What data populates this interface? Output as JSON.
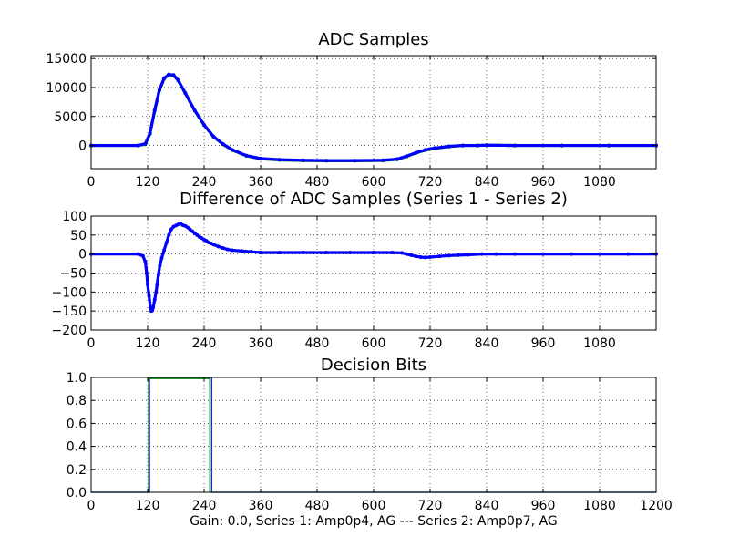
{
  "chart_data": [
    {
      "type": "line",
      "title": "ADC Samples",
      "xlabel": "",
      "ylabel": "",
      "xlim": [
        0,
        1200
      ],
      "ylim": [
        -4000,
        15500
      ],
      "x_ticks": [
        0,
        120,
        240,
        360,
        480,
        600,
        720,
        840,
        960,
        1080
      ],
      "x_tick_labels": [
        "0",
        "120",
        "240",
        "360",
        "480",
        "600",
        "720",
        "840",
        "960",
        "1080"
      ],
      "y_ticks": [
        0,
        5000,
        10000,
        15000
      ],
      "y_tick_labels": [
        "0",
        "5000",
        "10000",
        "15000"
      ],
      "grid": true,
      "series": [
        {
          "color": "#008000",
          "marker": "dot",
          "x": [
            0,
            100,
            115,
            125,
            135,
            145,
            155,
            165,
            175,
            185,
            200,
            220,
            240,
            260,
            280,
            300,
            330,
            360,
            400,
            450,
            500,
            560,
            620,
            650,
            670,
            690,
            710,
            730,
            760,
            790,
            820,
            840,
            900,
            1000,
            1100,
            1200
          ],
          "values": [
            0,
            0,
            200,
            2000,
            6000,
            9500,
            11500,
            12200,
            12100,
            11200,
            9000,
            6000,
            3500,
            1500,
            200,
            -800,
            -1800,
            -2300,
            -2500,
            -2600,
            -2650,
            -2650,
            -2600,
            -2400,
            -1900,
            -1300,
            -800,
            -500,
            -200,
            0,
            0,
            50,
            0,
            0,
            0,
            0
          ]
        },
        {
          "color": "#0000ff",
          "marker": "dot",
          "x": [
            0,
            100,
            115,
            125,
            135,
            145,
            155,
            165,
            175,
            185,
            200,
            220,
            240,
            260,
            280,
            300,
            330,
            360,
            400,
            450,
            500,
            560,
            620,
            650,
            670,
            690,
            710,
            730,
            760,
            790,
            820,
            840,
            900,
            1000,
            1100,
            1200
          ],
          "values": [
            0,
            0,
            300,
            2100,
            6100,
            9600,
            11600,
            12250,
            12150,
            11250,
            9050,
            6050,
            3550,
            1550,
            250,
            -750,
            -1750,
            -2250,
            -2450,
            -2550,
            -2600,
            -2600,
            -2550,
            -2350,
            -1850,
            -1250,
            -750,
            -450,
            -150,
            0,
            0,
            50,
            0,
            0,
            0,
            0
          ]
        }
      ]
    },
    {
      "type": "scatter",
      "title": "Difference of ADC Samples (Series 1 - Series 2)",
      "xlabel": "",
      "ylabel": "",
      "xlim": [
        0,
        1200
      ],
      "ylim": [
        -200,
        100
      ],
      "x_ticks": [
        0,
        120,
        240,
        360,
        480,
        600,
        720,
        840,
        960,
        1080
      ],
      "x_tick_labels": [
        "0",
        "120",
        "240",
        "360",
        "480",
        "600",
        "720",
        "840",
        "960",
        "1080"
      ],
      "y_ticks": [
        -200,
        -150,
        -100,
        -50,
        0,
        50,
        100
      ],
      "y_tick_labels": [
        "−200",
        "−150",
        "−100",
        "−50",
        "0",
        "50",
        "100"
      ],
      "grid": true,
      "series": [
        {
          "color": "#0000ff",
          "marker": "dot",
          "x": [
            0,
            100,
            110,
            115,
            118,
            120,
            123,
            126,
            128,
            130,
            132,
            135,
            138,
            140,
            143,
            146,
            150,
            155,
            160,
            165,
            170,
            175,
            180,
            185,
            190,
            195,
            200,
            205,
            210,
            215,
            220,
            225,
            230,
            235,
            240,
            245,
            250,
            255,
            260,
            270,
            280,
            290,
            300,
            320,
            340,
            360,
            400,
            450,
            500,
            550,
            600,
            640,
            660,
            670,
            680,
            690,
            700,
            710,
            720,
            740,
            760,
            780,
            800,
            830,
            860,
            900,
            960,
            1020,
            1080,
            1140,
            1200
          ],
          "values": [
            0,
            0,
            -5,
            -20,
            -50,
            -80,
            -110,
            -140,
            -150,
            -148,
            -140,
            -120,
            -100,
            -80,
            -55,
            -30,
            -10,
            10,
            30,
            50,
            65,
            72,
            75,
            78,
            80,
            76,
            74,
            70,
            65,
            60,
            55,
            50,
            45,
            42,
            38,
            35,
            30,
            28,
            25,
            20,
            16,
            12,
            10,
            8,
            6,
            4,
            4,
            4,
            4,
            4,
            4,
            4,
            3,
            0,
            -3,
            -6,
            -8,
            -9,
            -8,
            -6,
            -4,
            -3,
            -2,
            0,
            0,
            0,
            0,
            0,
            0,
            0,
            0
          ]
        }
      ]
    },
    {
      "type": "line",
      "title": "Decision Bits",
      "xlabel": "Gain: 0.0, Series 1: Amp0p4, AG --- Series 2: Amp0p7, AG",
      "ylabel": "",
      "xlim": [
        0,
        1200
      ],
      "ylim": [
        0,
        1
      ],
      "x_ticks": [
        0,
        120,
        240,
        360,
        480,
        600,
        720,
        840,
        960,
        1080,
        1200
      ],
      "x_tick_labels": [
        "0",
        "120",
        "240",
        "360",
        "480",
        "600",
        "720",
        "840",
        "960",
        "1080",
        "1200"
      ],
      "y_ticks": [
        0,
        0.2,
        0.4,
        0.6,
        0.8,
        1.0
      ],
      "y_tick_labels": [
        "0.0",
        "0.2",
        "0.4",
        "0.6",
        "0.8",
        "1.0"
      ],
      "grid": true,
      "series": [
        {
          "color": "#0000ff",
          "x": [
            0,
            124,
            124,
            256,
            256,
            1200
          ],
          "values": [
            0,
            0,
            1,
            1,
            0,
            0
          ]
        },
        {
          "color": "#008000",
          "x": [
            0,
            122,
            122,
            252,
            252,
            1200
          ],
          "values": [
            0,
            0,
            0.99,
            0.99,
            0,
            0
          ]
        }
      ]
    }
  ]
}
